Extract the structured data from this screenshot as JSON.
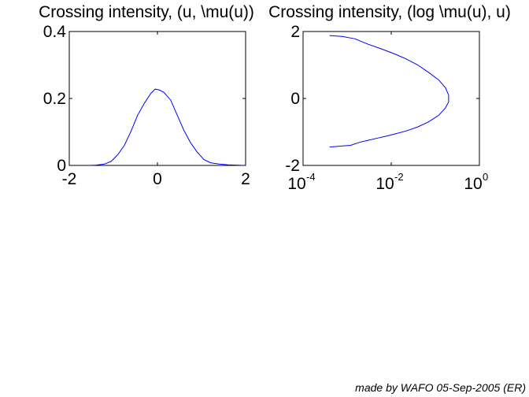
{
  "chart_data": [
    {
      "type": "line",
      "title": "Crossing intensity, (u, \\mu(u))",
      "xlabel": "",
      "ylabel": "",
      "xlim": [
        -2,
        2
      ],
      "ylim": [
        0,
        0.4
      ],
      "xticks": [
        "-2",
        "0",
        "2"
      ],
      "yticks": [
        "0",
        "0.2",
        "0.4"
      ],
      "xscale": "linear",
      "grid": false,
      "color": "#0000ff",
      "x": [
        -1.55,
        -1.4,
        -1.2,
        -1.05,
        -0.9,
        -0.75,
        -0.6,
        -0.45,
        -0.3,
        -0.15,
        -0.05,
        0.05,
        0.15,
        0.3,
        0.45,
        0.6,
        0.75,
        0.9,
        1.05,
        1.2,
        1.4,
        1.6,
        1.8,
        1.95
      ],
      "y": [
        0.0,
        0.001,
        0.004,
        0.012,
        0.032,
        0.06,
        0.102,
        0.15,
        0.185,
        0.215,
        0.228,
        0.225,
        0.218,
        0.195,
        0.15,
        0.105,
        0.068,
        0.04,
        0.018,
        0.008,
        0.004,
        0.002,
        0.001,
        0.0
      ]
    },
    {
      "type": "line",
      "title": "Crossing intensity, (log \\mu(u), u)",
      "xlabel": "",
      "ylabel": "",
      "xlim": [
        0.0001,
        1
      ],
      "ylim": [
        -2,
        2
      ],
      "xscale": "log",
      "xticks": [
        {
          "base": "10",
          "exp": "-4"
        },
        {
          "base": "10",
          "exp": "-2"
        },
        {
          "base": "10",
          "exp": "0"
        }
      ],
      "yticks": [
        "-2",
        "0",
        "2"
      ],
      "grid": false,
      "color": "#0000ff",
      "x": [
        0.0004,
        0.0008,
        0.0012,
        0.002,
        0.003,
        0.005,
        0.008,
        0.013,
        0.022,
        0.04,
        0.07,
        0.12,
        0.17,
        0.2,
        0.2,
        0.17,
        0.12,
        0.07,
        0.04,
        0.022,
        0.012,
        0.006,
        0.003,
        0.0015,
        0.0008,
        0.0004
      ],
      "y": [
        -1.45,
        -1.42,
        -1.4,
        -1.3,
        -1.25,
        -1.18,
        -1.12,
        -1.05,
        -0.97,
        -0.85,
        -0.7,
        -0.5,
        -0.28,
        -0.1,
        0.1,
        0.32,
        0.55,
        0.78,
        1.0,
        1.18,
        1.33,
        1.48,
        1.62,
        1.78,
        1.85,
        1.88
      ]
    }
  ],
  "footer": {
    "credit": "made by WAFO 05-Sep-2005 (ER)"
  }
}
